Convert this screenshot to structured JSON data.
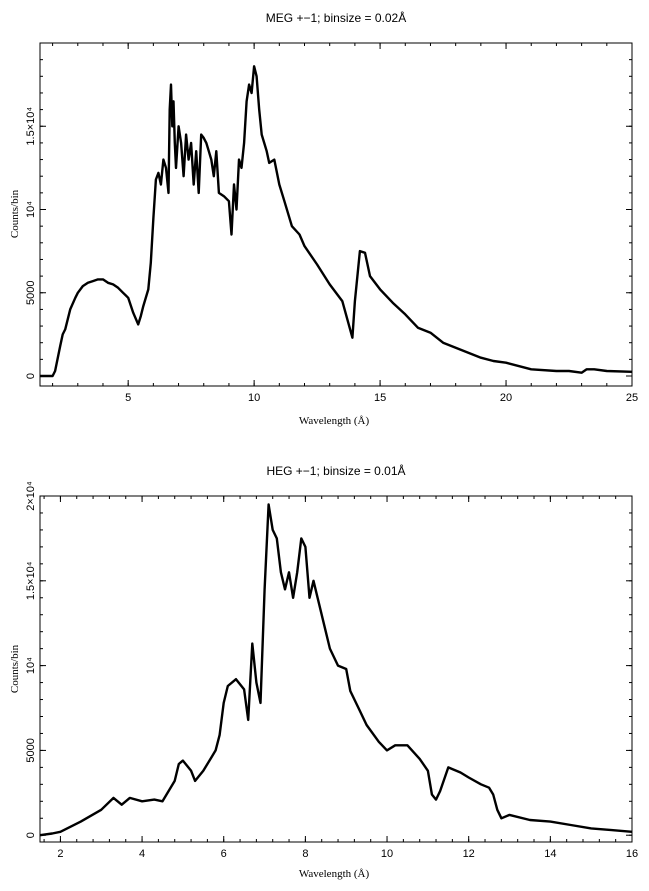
{
  "chart_data": [
    {
      "type": "line",
      "title": "MEG +−1; binsize = 0.02Å",
      "xlabel": "Wavelength (Å)",
      "ylabel": "Counts/bin",
      "xlim": [
        1.5,
        25
      ],
      "ylim": [
        -600,
        20000
      ],
      "xticks": [
        5,
        10,
        15,
        20,
        25
      ],
      "xtick_labels": [
        "5",
        "10",
        "15",
        "20",
        "25"
      ],
      "yticks": [
        0,
        5000,
        10000,
        15000
      ],
      "ytick_labels": [
        "0",
        "5000",
        "10⁴",
        "1.5×10⁴"
      ],
      "grid": false,
      "series": [
        {
          "color": "#000000",
          "x": [
            1.5,
            2.0,
            2.1,
            2.3,
            2.4,
            2.5,
            2.6,
            2.7,
            2.9,
            3.0,
            3.2,
            3.4,
            3.6,
            3.8,
            4.0,
            4.2,
            4.4,
            4.6,
            4.8,
            5.0,
            5.2,
            5.4,
            5.5,
            5.6,
            5.8,
            5.9,
            6.0,
            6.1,
            6.2,
            6.3,
            6.4,
            6.5,
            6.6,
            6.65,
            6.7,
            6.75,
            6.8,
            6.85,
            6.9,
            7.0,
            7.1,
            7.2,
            7.3,
            7.4,
            7.5,
            7.6,
            7.7,
            7.8,
            7.9,
            8.0,
            8.1,
            8.2,
            8.3,
            8.4,
            8.5,
            8.6,
            8.8,
            9.0,
            9.1,
            9.2,
            9.3,
            9.4,
            9.5,
            9.6,
            9.7,
            9.8,
            9.9,
            10.0,
            10.1,
            10.2,
            10.3,
            10.4,
            10.5,
            10.6,
            10.8,
            11.0,
            11.2,
            11.5,
            11.8,
            12.0,
            12.5,
            13.0,
            13.5,
            13.9,
            14.0,
            14.2,
            14.4,
            14.6,
            15.0,
            15.5,
            16.0,
            16.5,
            17.0,
            17.5,
            18.0,
            18.5,
            19.0,
            19.5,
            20.0,
            21.0,
            22.0,
            22.5,
            23.0,
            23.2,
            23.5,
            24.0,
            25.0
          ],
          "y": [
            0,
            0,
            300,
            1800,
            2500,
            2800,
            3400,
            4000,
            4700,
            5000,
            5400,
            5600,
            5700,
            5800,
            5800,
            5600,
            5500,
            5300,
            5000,
            4700,
            3800,
            3100,
            3600,
            4200,
            5200,
            6800,
            9500,
            11800,
            12200,
            11500,
            13000,
            12500,
            11000,
            16000,
            17500,
            15000,
            16500,
            14000,
            12500,
            15000,
            14000,
            12000,
            14500,
            13000,
            14000,
            11500,
            13500,
            11000,
            14500,
            14300,
            14000,
            13500,
            13000,
            12000,
            13500,
            11000,
            10800,
            10500,
            8500,
            11500,
            10000,
            13000,
            12500,
            14000,
            16500,
            17500,
            17000,
            18600,
            18000,
            16000,
            14500,
            14000,
            13500,
            12800,
            13000,
            11500,
            10500,
            9000,
            8500,
            7800,
            6700,
            5500,
            4500,
            2300,
            4500,
            7500,
            7400,
            6000,
            5200,
            4400,
            3700,
            2900,
            2600,
            2000,
            1700,
            1400,
            1100,
            900,
            800,
            400,
            300,
            300,
            200,
            400,
            400,
            300,
            250
          ]
        }
      ]
    },
    {
      "type": "line",
      "title": "HEG +−1; binsize = 0.01Å",
      "xlabel": "Wavelength (Å)",
      "ylabel": "Counts/bin",
      "xlim": [
        1.5,
        16
      ],
      "ylim": [
        -400,
        20000
      ],
      "xticks": [
        2,
        4,
        6,
        8,
        10,
        12,
        14,
        16
      ],
      "xtick_labels": [
        "2",
        "4",
        "6",
        "8",
        "10",
        "12",
        "14",
        "16"
      ],
      "yticks": [
        0,
        5000,
        10000,
        15000,
        20000
      ],
      "ytick_labels": [
        "0",
        "5000",
        "10⁴",
        "1.5×10⁴",
        "2×10⁴"
      ],
      "grid": false,
      "series": [
        {
          "color": "#000000",
          "x": [
            1.5,
            1.8,
            2.0,
            2.5,
            3.0,
            3.3,
            3.5,
            3.7,
            4.0,
            4.3,
            4.5,
            4.8,
            4.9,
            5.0,
            5.2,
            5.3,
            5.5,
            5.7,
            5.8,
            5.9,
            6.0,
            6.1,
            6.3,
            6.5,
            6.6,
            6.7,
            6.8,
            6.9,
            7.0,
            7.1,
            7.2,
            7.3,
            7.4,
            7.5,
            7.6,
            7.7,
            7.8,
            7.9,
            8.0,
            8.1,
            8.2,
            8.3,
            8.5,
            8.6,
            8.8,
            9.0,
            9.1,
            9.3,
            9.5,
            9.8,
            10.0,
            10.2,
            10.5,
            10.8,
            11.0,
            11.1,
            11.2,
            11.3,
            11.5,
            11.6,
            11.8,
            12.0,
            12.3,
            12.5,
            12.6,
            12.7,
            12.8,
            13.0,
            13.5,
            14.0,
            14.5,
            15.0,
            15.5,
            16.0
          ],
          "y": [
            0,
            100,
            200,
            800,
            1500,
            2200,
            1800,
            2200,
            2000,
            2100,
            2000,
            3200,
            4200,
            4400,
            3800,
            3200,
            3800,
            4600,
            5000,
            5900,
            7800,
            8800,
            9200,
            8600,
            6800,
            11300,
            9000,
            7800,
            14500,
            19500,
            18000,
            17500,
            15500,
            14500,
            15500,
            14000,
            15500,
            17500,
            17000,
            14000,
            15000,
            14000,
            12000,
            11000,
            10000,
            9800,
            8500,
            7500,
            6500,
            5500,
            5000,
            5300,
            5300,
            4500,
            3800,
            2400,
            2100,
            2600,
            4000,
            3900,
            3700,
            3400,
            3000,
            2800,
            2400,
            1500,
            1000,
            1200,
            900,
            800,
            600,
            400,
            300,
            200
          ]
        }
      ]
    }
  ]
}
